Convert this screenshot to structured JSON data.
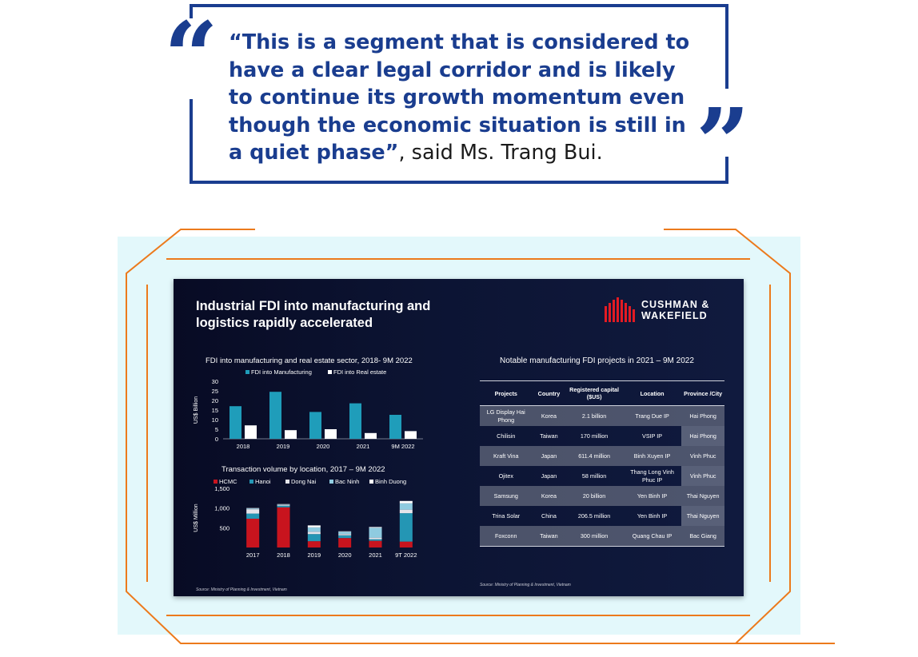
{
  "quote": {
    "text": "“This is a segment that is considered to have a clear legal corridor and is likely to continue its growth momentum even though the economic situation is still in a quiet phase”",
    "attribution": ", said Ms. Trang Bui.",
    "open_mark": "“",
    "close_mark": "”",
    "color": "#1a3d8f"
  },
  "frame": {
    "accent": "#ec7a1c",
    "background": "#e3f8fb"
  },
  "slide": {
    "title": "Industrial FDI into manufacturing and logistics rapidly accelerated",
    "brand": "CUSHMAN & WAKEFIELD",
    "brand_line1": "CUSHMAN &",
    "brand_line2": "WAKEFIELD",
    "brand_color": "#e31b23",
    "source_left": "Source: Ministry of Planning & Investment, Vietnam",
    "source_right": "Source: Ministry of Planning & Investment, Vietnam"
  },
  "chart_data": [
    {
      "type": "bar",
      "title": "FDI into manufacturing and real estate sector, 2018- 9M 2022",
      "ylabel": "US$ Billion",
      "xlabel": "",
      "categories": [
        "2018",
        "2019",
        "2020",
        "2021",
        "9M 2022"
      ],
      "series": [
        {
          "name": "FDI into Manufacturing",
          "color": "#1f9dba",
          "values": [
            17,
            24.5,
            14,
            18.5,
            12.5
          ]
        },
        {
          "name": "FDI into Real estate",
          "color": "#ffffff",
          "values": [
            7,
            4.5,
            5,
            3,
            4
          ]
        }
      ],
      "ylim": [
        0,
        30
      ],
      "yticks": [
        "30",
        "25",
        "20",
        "15",
        "10",
        "5",
        "0"
      ],
      "legend": "top",
      "grid": false
    },
    {
      "type": "bar",
      "stacked": true,
      "title": "Transaction volume by location, 2017 – 9M 2022",
      "ylabel": "US$ Million",
      "xlabel": "",
      "categories": [
        "2017",
        "2018",
        "2019",
        "2020",
        "2021",
        "9T 2022"
      ],
      "series": [
        {
          "name": "HCMC",
          "color": "#c8141e",
          "values": [
            730,
            1020,
            160,
            240,
            170,
            150
          ]
        },
        {
          "name": "Hanoi",
          "color": "#2496b4",
          "values": [
            130,
            40,
            180,
            70,
            40,
            720
          ]
        },
        {
          "name": "Dong Nai",
          "color": "#e4e4ea",
          "values": [
            110,
            20,
            60,
            30,
            40,
            90
          ]
        },
        {
          "name": "Bac Ninh",
          "color": "#8fcbe0",
          "values": [
            20,
            10,
            110,
            60,
            250,
            160
          ]
        },
        {
          "name": "Binh Duong",
          "color": "#ffffff",
          "values": [
            10,
            10,
            50,
            10,
            20,
            60
          ]
        }
      ],
      "ylim": [
        0,
        1500
      ],
      "yticks": [
        "1,500",
        "1,000",
        "500"
      ],
      "legend": "top",
      "grid": false
    }
  ],
  "table": {
    "title": "Notable manufacturing FDI projects in 2021 – 9M 2022",
    "headers": [
      "Projects",
      "Country",
      "Registered capital ($US)",
      "Location",
      "Province /City"
    ],
    "rows": [
      [
        "LG Display Hai Phong",
        "Korea",
        "2.1 billion",
        "Trang Due IP",
        "Hai Phong"
      ],
      [
        "Chilisin",
        "Taiwan",
        "170 million",
        "VSIP IP",
        "Hai Phong"
      ],
      [
        "Kraft Vina",
        "Japan",
        "611.4 million",
        "Binh Xuyen IP",
        "Vinh Phuc"
      ],
      [
        "Ojitex",
        "Japan",
        "58 million",
        "Thang Long Vinh Phuc IP",
        "Vinh Phuc"
      ],
      [
        "Samsung",
        "Korea",
        "20 billion",
        "Yen Binh IP",
        "Thai Nguyen"
      ],
      [
        "Trina Solar",
        "China",
        "206.5 million",
        "Yen Binh IP",
        "Thai Nguyen"
      ],
      [
        "Foxconn",
        "Taiwan",
        "300 million",
        "Quang Chau IP",
        "Bac Giang"
      ]
    ]
  }
}
